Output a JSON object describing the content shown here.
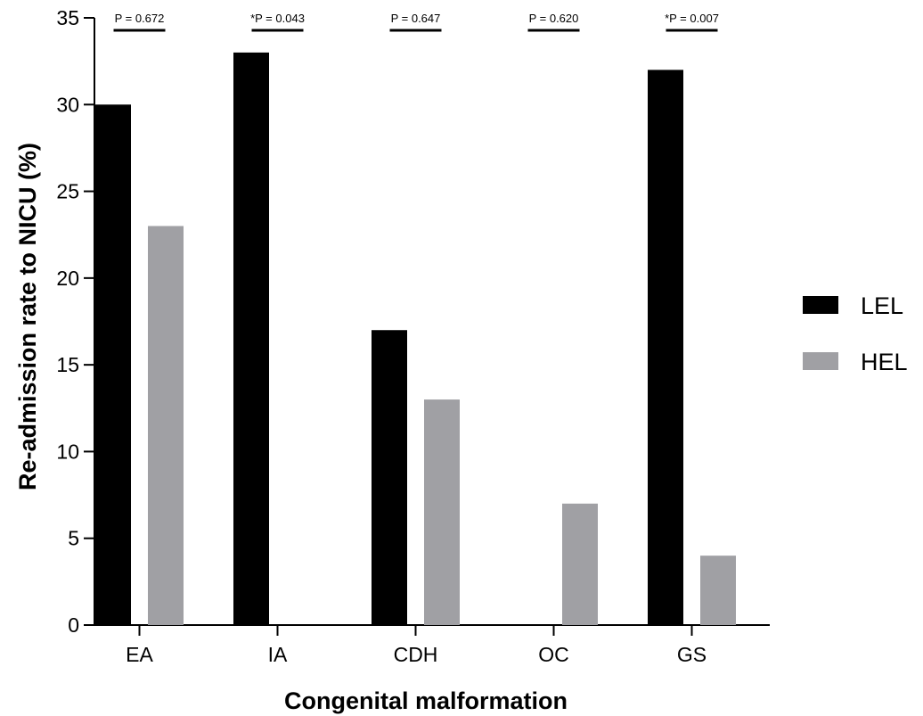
{
  "chart_data": {
    "type": "bar",
    "xlabel": "Congenital malformation",
    "ylabel": "Re-admission rate to NICU (%)",
    "ylim": [
      0,
      35
    ],
    "yticks": [
      "0",
      "5",
      "10",
      "15",
      "20",
      "25",
      "30",
      "35"
    ],
    "categories": [
      "EA",
      "IA",
      "CDH",
      "OC",
      "GS"
    ],
    "series": [
      {
        "name": "LEL",
        "color": "#000000",
        "values": [
          30,
          33,
          17,
          0,
          32
        ]
      },
      {
        "name": "HEL",
        "color": "#a0a0a4",
        "values": [
          23,
          0,
          13,
          7,
          4
        ]
      }
    ],
    "p_values": [
      "P = 0.672",
      "*P = 0.043",
      "P = 0.647",
      "P = 0.620",
      "*P = 0.007"
    ],
    "legend_position": "right",
    "grid": false
  }
}
